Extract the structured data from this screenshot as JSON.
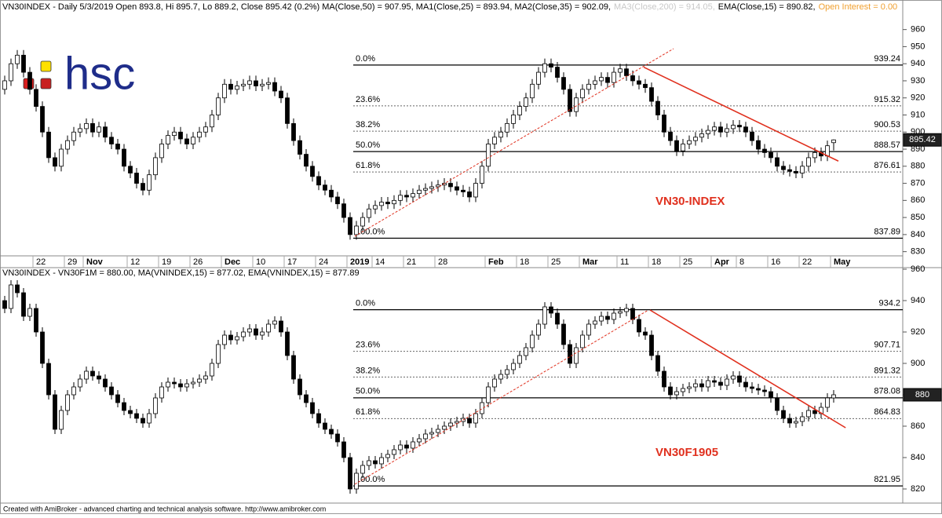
{
  "chart_data": [
    {
      "type": "candlestick",
      "title_parts": [
        "VN30INDEX - Daily 5/3/2019 Open 893.8, Hi 895.7, Lo 889.2, Close 895.42 (0.2%) MA(Close,50) = 907.95, MA1(Close,25) = 893.94, MA2(Close,35) = 902.09,",
        "MA3(Close,200) = 914.05,",
        "EMA(Close,15) = 890.82,",
        "Open Interest = 0.00"
      ],
      "title_colors": [
        "#000000",
        "#c8c8c8",
        "#000000",
        "#f0a030"
      ],
      "annotation": "VN30-INDEX",
      "annotation_color": "#e0301e",
      "up_color": "#ffffff",
      "down_color": "#000000",
      "categories": [
        null,
        null,
        null,
        null,
        null,
        "22",
        null,
        null,
        null,
        null,
        "29",
        null,
        null,
        "Nov",
        null,
        null,
        null,
        null,
        null,
        null,
        "12",
        null,
        null,
        null,
        null,
        "19",
        null,
        null,
        null,
        null,
        "26",
        null,
        null,
        null,
        null,
        "Dec",
        null,
        null,
        null,
        null,
        "10",
        null,
        null,
        null,
        null,
        "17",
        null,
        null,
        null,
        null,
        "24",
        null,
        null,
        null,
        null,
        "2019",
        null,
        null,
        null,
        "14",
        null,
        null,
        null,
        null,
        "21",
        null,
        null,
        null,
        null,
        "28",
        null,
        null,
        null,
        null,
        null,
        null,
        null,
        "Feb",
        null,
        null,
        null,
        null,
        "18",
        null,
        null,
        null,
        null,
        "25",
        null,
        null,
        null,
        null,
        "Mar",
        null,
        null,
        null,
        null,
        null,
        "11",
        null,
        null,
        null,
        null,
        "18",
        null,
        null,
        null,
        null,
        "25",
        null,
        null,
        null,
        null,
        "Apr",
        null,
        null,
        null,
        "8",
        null,
        null,
        null,
        null,
        "16",
        null,
        null,
        null,
        null,
        "22",
        null,
        null,
        null,
        null,
        "May"
      ],
      "open": [
        925,
        930,
        940,
        945,
        935,
        925,
        915,
        900,
        885,
        880,
        890,
        895,
        900,
        902,
        905,
        900,
        903,
        897,
        893,
        890,
        880,
        876,
        870,
        866,
        875,
        885,
        893,
        898,
        900,
        896,
        893,
        897,
        900,
        903,
        910,
        920,
        928,
        925,
        927,
        928,
        930,
        927,
        928,
        929,
        924,
        920,
        905,
        895,
        887,
        880,
        874,
        869,
        866,
        862,
        858,
        850,
        840,
        845,
        850,
        855,
        857,
        859,
        858,
        860,
        863,
        862,
        864,
        866,
        867,
        868,
        869,
        870,
        868,
        866,
        865,
        862,
        870,
        880,
        893,
        897,
        900,
        905,
        910,
        915,
        920,
        928,
        935,
        940,
        938,
        932,
        925,
        912,
        920,
        925,
        928,
        930,
        932,
        929,
        935,
        937,
        933,
        930,
        928,
        926,
        918,
        910,
        900,
        895,
        889,
        893,
        895,
        897,
        899,
        901,
        903,
        900,
        902,
        904,
        903,
        900,
        895,
        890,
        888,
        885,
        880,
        878,
        877,
        876,
        880,
        885,
        888,
        886,
        893.8
      ],
      "high": [
        933,
        943,
        948,
        948,
        938,
        928,
        918,
        903,
        888,
        893,
        898,
        903,
        905,
        908,
        908,
        906,
        906,
        900,
        896,
        893,
        883,
        879,
        873,
        878,
        888,
        896,
        901,
        903,
        903,
        899,
        900,
        903,
        906,
        913,
        923,
        931,
        931,
        930,
        931,
        933,
        933,
        931,
        932,
        932,
        927,
        923,
        908,
        898,
        890,
        883,
        877,
        872,
        869,
        865,
        861,
        853,
        848,
        853,
        858,
        860,
        862,
        862,
        863,
        866,
        866,
        867,
        869,
        870,
        871,
        872,
        873,
        873,
        871,
        869,
        868,
        873,
        883,
        896,
        900,
        903,
        908,
        913,
        918,
        923,
        931,
        938,
        943,
        943,
        941,
        935,
        928,
        923,
        928,
        931,
        933,
        935,
        935,
        938,
        940,
        940,
        936,
        933,
        931,
        929,
        921,
        913,
        903,
        898,
        896,
        898,
        900,
        902,
        904,
        906,
        906,
        905,
        907,
        907,
        906,
        903,
        898,
        893,
        891,
        888,
        883,
        881,
        880,
        883,
        888,
        891,
        891,
        895,
        895.7
      ],
      "low": [
        922,
        927,
        937,
        932,
        922,
        912,
        897,
        882,
        877,
        877,
        887,
        892,
        897,
        899,
        897,
        897,
        894,
        890,
        887,
        877,
        873,
        867,
        863,
        863,
        872,
        882,
        890,
        895,
        893,
        890,
        890,
        894,
        897,
        900,
        907,
        917,
        922,
        922,
        924,
        925,
        924,
        924,
        925,
        921,
        917,
        902,
        892,
        884,
        877,
        871,
        866,
        863,
        859,
        855,
        847,
        837,
        837,
        842,
        847,
        852,
        854,
        855,
        855,
        857,
        859,
        859,
        861,
        863,
        864,
        865,
        866,
        865,
        863,
        862,
        859,
        859,
        867,
        877,
        890,
        894,
        897,
        902,
        907,
        912,
        917,
        925,
        932,
        935,
        929,
        922,
        909,
        909,
        917,
        922,
        925,
        927,
        926,
        926,
        932,
        930,
        927,
        925,
        923,
        915,
        907,
        897,
        892,
        886,
        886,
        890,
        892,
        894,
        896,
        898,
        897,
        897,
        899,
        900,
        897,
        892,
        887,
        885,
        882,
        877,
        875,
        874,
        873,
        873,
        877,
        882,
        883,
        883,
        889.2
      ],
      "close": [
        930,
        940,
        945,
        935,
        925,
        915,
        900,
        885,
        880,
        890,
        895,
        900,
        902,
        905,
        900,
        903,
        897,
        893,
        890,
        880,
        876,
        870,
        866,
        875,
        885,
        893,
        898,
        900,
        896,
        893,
        897,
        900,
        903,
        910,
        920,
        928,
        925,
        927,
        928,
        930,
        927,
        928,
        929,
        924,
        920,
        905,
        895,
        887,
        880,
        874,
        869,
        866,
        862,
        858,
        850,
        840,
        845,
        850,
        855,
        857,
        859,
        858,
        860,
        863,
        862,
        864,
        866,
        867,
        868,
        869,
        870,
        868,
        866,
        865,
        862,
        870,
        880,
        893,
        897,
        900,
        905,
        910,
        915,
        920,
        928,
        935,
        940,
        938,
        932,
        925,
        912,
        920,
        925,
        928,
        930,
        932,
        929,
        935,
        937,
        933,
        930,
        928,
        926,
        918,
        910,
        900,
        895,
        889,
        893,
        895,
        897,
        899,
        901,
        903,
        900,
        902,
        904,
        903,
        900,
        895,
        890,
        888,
        885,
        880,
        878,
        877,
        876,
        880,
        885,
        888,
        886,
        892,
        895.42
      ],
      "levels": [
        {
          "value": 939.24,
          "label": "0.0%"
        },
        {
          "value": 915.32,
          "label": "23.6%"
        },
        {
          "value": 900.53,
          "label": "38.2%"
        },
        {
          "value": 888.57,
          "label": "50.0%"
        },
        {
          "value": 876.61,
          "label": "61.8%"
        },
        {
          "value": 837.89,
          "label": "100.0%"
        }
      ],
      "level_styles": [
        "solid",
        "dotted",
        "dotted",
        "solid",
        "dotted",
        "solid"
      ],
      "trendlines": [
        {
          "color": "#e0301e",
          "dashed": false,
          "x": [
            101.75,
            132.75
          ],
          "values": [
            938,
            883
          ]
        },
        {
          "color": "#e0301e",
          "dashed": true,
          "x": [
            55.75,
            106.5
          ],
          "values": [
            839,
            948.8
          ]
        }
      ],
      "last_price": 895.42,
      "ylim": [
        828,
        975
      ],
      "yticks": [
        830,
        840,
        850,
        860,
        870,
        880,
        890,
        900,
        910,
        920,
        930,
        940,
        950,
        960
      ]
    },
    {
      "type": "candlestick",
      "title_parts": [
        "VN30INDEX - VN30F1M = 880.00, MA(VNINDEX,15) = 877.02, EMA(VNINDEX,15) = 877.89"
      ],
      "title_colors": [
        "#000000"
      ],
      "annotation": "VN30F1905",
      "annotation_color": "#e0301e",
      "up_color": "#ffffff",
      "down_color": "#000000",
      "open": [
        940,
        935,
        950,
        945,
        930,
        935,
        920,
        900,
        880,
        858,
        870,
        880,
        885,
        890,
        895,
        892,
        890,
        885,
        880,
        875,
        870,
        868,
        865,
        862,
        868,
        878,
        885,
        888,
        887,
        885,
        887,
        888,
        890,
        892,
        900,
        912,
        918,
        915,
        917,
        920,
        922,
        918,
        920,
        925,
        927,
        920,
        905,
        890,
        880,
        875,
        868,
        862,
        858,
        855,
        850,
        840,
        820,
        830,
        835,
        838,
        836,
        840,
        842,
        845,
        848,
        846,
        850,
        852,
        855,
        856,
        858,
        860,
        862,
        863,
        865,
        862,
        868,
        875,
        885,
        890,
        893,
        896,
        900,
        905,
        910,
        918,
        925,
        936,
        932,
        925,
        912,
        900,
        910,
        918,
        925,
        927,
        930,
        928,
        932,
        933,
        935,
        928,
        920,
        918,
        905,
        895,
        885,
        880,
        882,
        884,
        885,
        887,
        885,
        889,
        888,
        886,
        890,
        892,
        888,
        885,
        884,
        883,
        882,
        878,
        870,
        865,
        862,
        863,
        866,
        870,
        868,
        872,
        878
      ],
      "high": [
        943,
        953,
        953,
        948,
        938,
        938,
        923,
        903,
        883,
        873,
        883,
        888,
        893,
        898,
        898,
        895,
        893,
        888,
        883,
        878,
        873,
        871,
        868,
        871,
        881,
        888,
        891,
        891,
        890,
        890,
        891,
        893,
        895,
        903,
        915,
        921,
        921,
        920,
        923,
        925,
        925,
        923,
        928,
        930,
        930,
        923,
        908,
        893,
        883,
        878,
        871,
        865,
        861,
        858,
        853,
        843,
        833,
        838,
        841,
        841,
        843,
        845,
        848,
        851,
        851,
        853,
        855,
        858,
        859,
        861,
        863,
        865,
        866,
        868,
        868,
        871,
        878,
        888,
        893,
        896,
        899,
        903,
        908,
        913,
        921,
        928,
        939,
        939,
        935,
        928,
        915,
        913,
        921,
        928,
        930,
        933,
        933,
        935,
        936,
        938,
        938,
        931,
        923,
        921,
        908,
        898,
        888,
        885,
        887,
        888,
        890,
        890,
        892,
        892,
        891,
        893,
        895,
        895,
        891,
        888,
        887,
        886,
        885,
        881,
        873,
        868,
        866,
        869,
        873,
        873,
        875,
        881,
        883
      ],
      "low": [
        932,
        932,
        942,
        927,
        927,
        917,
        897,
        877,
        855,
        855,
        867,
        877,
        882,
        887,
        889,
        887,
        882,
        877,
        872,
        867,
        865,
        862,
        859,
        859,
        865,
        875,
        882,
        884,
        882,
        882,
        884,
        885,
        887,
        889,
        897,
        909,
        912,
        912,
        914,
        917,
        915,
        915,
        917,
        922,
        917,
        902,
        887,
        877,
        872,
        865,
        859,
        855,
        852,
        847,
        837,
        817,
        817,
        827,
        832,
        833,
        833,
        837,
        839,
        842,
        843,
        843,
        847,
        849,
        852,
        853,
        855,
        857,
        859,
        860,
        859,
        859,
        865,
        872,
        882,
        887,
        890,
        893,
        897,
        902,
        907,
        915,
        922,
        929,
        922,
        909,
        897,
        897,
        907,
        915,
        922,
        924,
        925,
        925,
        929,
        930,
        925,
        917,
        915,
        902,
        892,
        882,
        877,
        877,
        879,
        881,
        882,
        882,
        882,
        885,
        883,
        883,
        887,
        885,
        882,
        881,
        880,
        879,
        875,
        867,
        862,
        859,
        859,
        860,
        863,
        865,
        865,
        869,
        875
      ],
      "close": [
        935,
        950,
        945,
        930,
        935,
        920,
        900,
        880,
        858,
        870,
        880,
        885,
        890,
        895,
        892,
        890,
        885,
        880,
        875,
        870,
        868,
        865,
        862,
        868,
        878,
        885,
        888,
        887,
        885,
        887,
        888,
        890,
        892,
        900,
        912,
        918,
        915,
        917,
        920,
        922,
        918,
        920,
        925,
        927,
        920,
        905,
        890,
        880,
        875,
        868,
        862,
        858,
        855,
        850,
        840,
        820,
        830,
        835,
        838,
        836,
        840,
        842,
        845,
        848,
        846,
        850,
        852,
        855,
        856,
        858,
        860,
        862,
        863,
        865,
        862,
        868,
        875,
        885,
        890,
        893,
        896,
        900,
        905,
        910,
        918,
        925,
        936,
        932,
        925,
        912,
        900,
        910,
        918,
        925,
        927,
        930,
        928,
        932,
        933,
        935,
        928,
        920,
        918,
        905,
        895,
        885,
        880,
        882,
        884,
        885,
        887,
        885,
        889,
        888,
        886,
        890,
        892,
        888,
        885,
        884,
        883,
        882,
        878,
        870,
        865,
        862,
        863,
        866,
        870,
        868,
        872,
        878,
        880
      ],
      "levels": [
        {
          "value": 934.2,
          "label": "0.0%"
        },
        {
          "value": 907.71,
          "label": "23.6%"
        },
        {
          "value": 891.32,
          "label": "38.2%"
        },
        {
          "value": 878.08,
          "label": "50.0%"
        },
        {
          "value": 864.83,
          "label": "61.8%"
        },
        {
          "value": 821.95,
          "label": "100.0%"
        }
      ],
      "level_styles": [
        "solid",
        "dotted",
        "dotted",
        "solid",
        "dotted",
        "solid"
      ],
      "trendlines": [
        {
          "color": "#e0301e",
          "dashed": false,
          "x": [
            102.75,
            133.9
          ],
          "values": [
            934,
            859
          ]
        },
        {
          "color": "#e0301e",
          "dashed": true,
          "x": [
            55.75,
            102.5
          ],
          "values": [
            823,
            934
          ]
        }
      ],
      "last_price": 880,
      "ylim": [
        813,
        960
      ],
      "yticks": [
        820,
        840,
        860,
        880,
        900,
        920,
        940,
        960
      ]
    }
  ],
  "logo": "hsc",
  "footer": "Created with AmiBroker - advanced charting and technical analysis software. http://www.amibroker.com"
}
